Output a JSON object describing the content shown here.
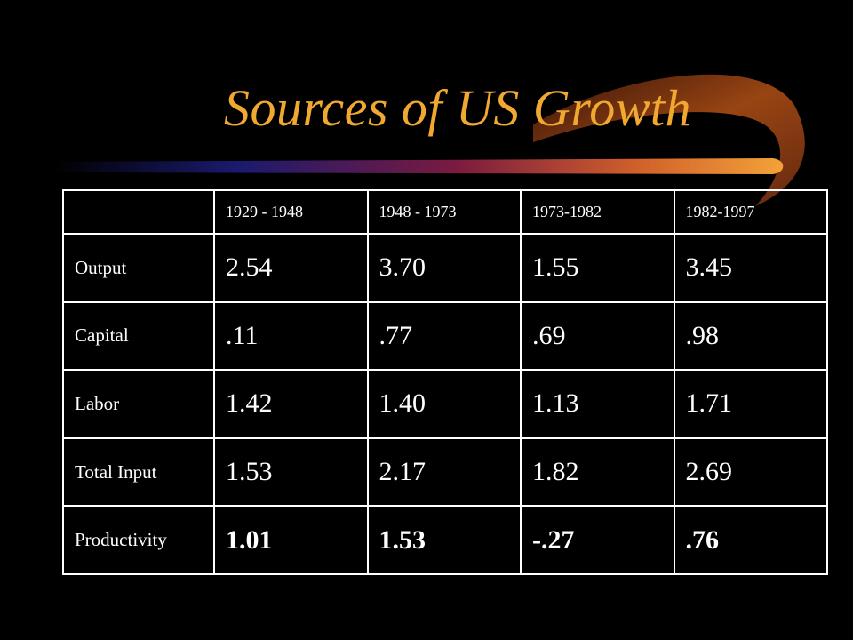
{
  "slide": {
    "title": "Sources of US Growth",
    "colors": {
      "background": "#000000",
      "title": "#f0a830",
      "table_text": "#ffffff"
    }
  },
  "table": {
    "columns": [
      "1929 - 1948",
      "1948 - 1973",
      "1973-1982",
      "1982-1997"
    ],
    "rows": [
      {
        "label": "Output",
        "values": [
          "2.54",
          "3.70",
          "1.55",
          "3.45"
        ]
      },
      {
        "label": "Capital",
        "values": [
          ".11",
          ".77",
          ".69",
          ".98"
        ]
      },
      {
        "label": "Labor",
        "values": [
          "1.42",
          "1.40",
          "1.13",
          "1.71"
        ]
      },
      {
        "label": "Total Input",
        "values": [
          "1.53",
          "2.17",
          "1.82",
          "2.69"
        ]
      },
      {
        "label": "Productivity",
        "values": [
          "1.01",
          "1.53",
          "-.27",
          ".76"
        ]
      }
    ]
  }
}
